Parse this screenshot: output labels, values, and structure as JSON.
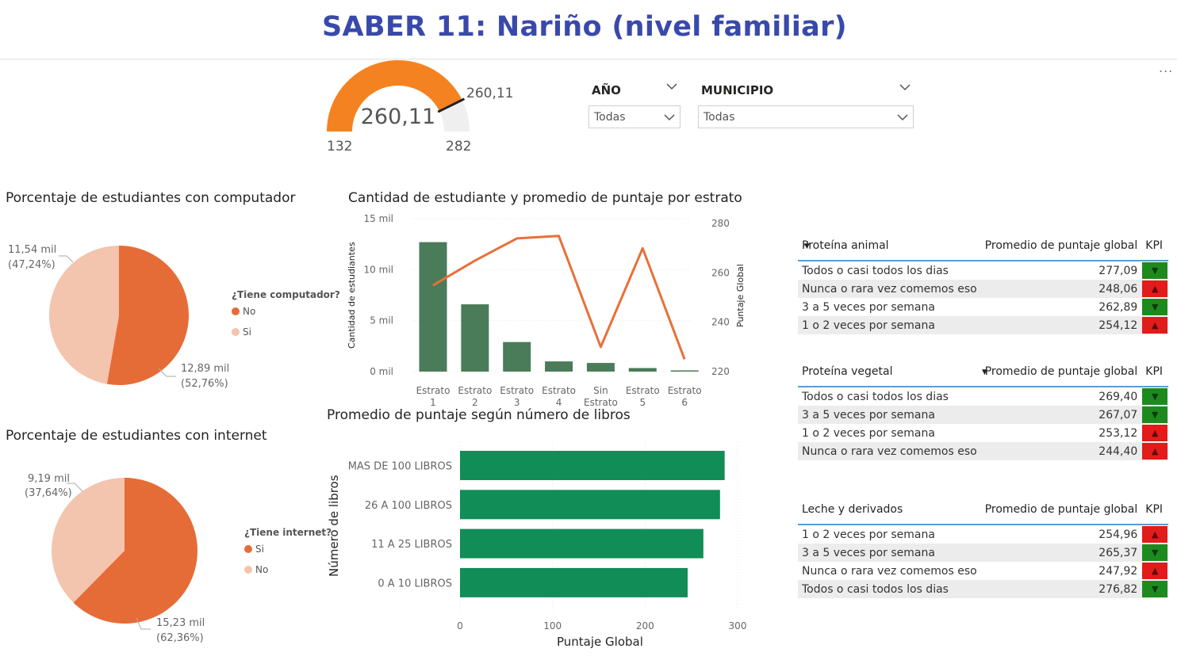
{
  "header": {
    "title": "SABER 11: Nariño (nivel familiar)",
    "more": "..."
  },
  "gauge": {
    "value": 260.11,
    "value_label": "260,11",
    "target_label": "260,11",
    "min": 132,
    "max": 282,
    "min_label": "132",
    "max_label": "282",
    "fill_color": "#f58220",
    "track_color": "#efefef"
  },
  "slicers": {
    "year": {
      "label": "AÑO",
      "value": "Todas"
    },
    "municipio": {
      "label": "MUNICIPIO",
      "value": "Todas"
    }
  },
  "pie_computer": {
    "title": "Porcentaje de estudiantes con computador",
    "legend_title": "¿Tiene computador?",
    "slices": [
      {
        "name": "No",
        "value_label": "12,89 mil",
        "pct_label": "(52,76%)",
        "pct": 52.76,
        "color": "#e66c37"
      },
      {
        "name": "Si",
        "value_label": "11,54 mil",
        "pct_label": "(47,24%)",
        "pct": 47.24,
        "color": "#f3c4ae"
      }
    ]
  },
  "pie_internet": {
    "title": "Porcentaje de estudiantes con internet",
    "legend_title": "¿Tiene internet?",
    "slices": [
      {
        "name": "Si",
        "value_label": "15,23 mil",
        "pct_label": "(62,36%)",
        "pct": 62.36,
        "color": "#e66c37"
      },
      {
        "name": "No",
        "value_label": "9,19 mil",
        "pct_label": "(37,64%)",
        "pct": 37.64,
        "color": "#f3c4ae"
      }
    ]
  },
  "combo": {
    "title": "Cantidad de estudiante y promedio de puntaje por estrato",
    "y_left_label": "Cantidad de estudiantes",
    "y_right_label": "Puntaje Global",
    "y_left_ticks": [
      "0 mil",
      "5 mil",
      "10 mil",
      "15 mil"
    ],
    "y_right_ticks": [
      "220",
      "240",
      "260",
      "280"
    ],
    "categories": [
      [
        "Estrato",
        "1"
      ],
      [
        "Estrato",
        "2"
      ],
      [
        "Estrato",
        "3"
      ],
      [
        "Estrato",
        "4"
      ],
      [
        "Sin",
        "Estrato"
      ],
      [
        "Estrato",
        "5"
      ],
      [
        "Estrato",
        "6"
      ]
    ]
  },
  "books": {
    "title": "Promedio de puntaje según número de libros",
    "y_label": "Número de libros",
    "x_label": "Puntaje Global",
    "x_ticks": [
      "0",
      "100",
      "200",
      "300"
    ]
  },
  "chart_data": [
    {
      "type": "bar+line",
      "title": "Cantidad de estudiante y promedio de puntaje por estrato",
      "categories": [
        "Estrato 1",
        "Estrato 2",
        "Estrato 3",
        "Estrato 4",
        "Sin Estrato",
        "Estrato 5",
        "Estrato 6"
      ],
      "series": [
        {
          "name": "Cantidad de estudiantes",
          "type": "bar",
          "axis": "left",
          "color": "#4a7c59",
          "values": [
            12700,
            6600,
            2900,
            1000,
            850,
            350,
            120
          ]
        },
        {
          "name": "Puntaje Global",
          "type": "line",
          "axis": "right",
          "color": "#e8703a",
          "values": [
            255,
            265,
            274,
            275,
            230,
            270,
            225
          ]
        }
      ],
      "ylim_left": [
        0,
        15000
      ],
      "ylim_right": [
        220,
        282
      ],
      "xlabel": "",
      "ylabel_left": "Cantidad de estudiantes",
      "ylabel_right": "Puntaje Global"
    },
    {
      "type": "bar",
      "orientation": "horizontal",
      "title": "Promedio de puntaje según número de libros",
      "categories": [
        "MAS DE 100 LIBROS",
        "26 A 100 LIBROS",
        "11 A 25 LIBROS",
        "0 A 10 LIBROS"
      ],
      "values": [
        286,
        281,
        263,
        246
      ],
      "color": "#118d57",
      "xlim": [
        0,
        300
      ],
      "xlabel": "Puntaje Global",
      "ylabel": "Número de libros"
    }
  ],
  "tables": [
    {
      "col1": "Proteína animal",
      "col2": "Promedio de puntaje global",
      "col3": "KPI",
      "rows": [
        {
          "label": "Todos o casi todos los dias",
          "value": "277,09",
          "kpi": "down"
        },
        {
          "label": "Nunca o rara vez comemos eso",
          "value": "248,06",
          "kpi": "up"
        },
        {
          "label": "3 a 5 veces por semana",
          "value": "262,89",
          "kpi": "down"
        },
        {
          "label": "1 o 2 veces por semana",
          "value": "254,12",
          "kpi": "up"
        }
      ]
    },
    {
      "col1": "Proteína vegetal",
      "col2": "Promedio de puntaje global",
      "col3": "KPI",
      "rows": [
        {
          "label": "Todos o casi todos los dias",
          "value": "269,40",
          "kpi": "down"
        },
        {
          "label": "3 a 5 veces por semana",
          "value": "267,07",
          "kpi": "down"
        },
        {
          "label": "1 o 2 veces por semana",
          "value": "253,12",
          "kpi": "up"
        },
        {
          "label": "Nunca o rara vez comemos eso",
          "value": "244,40",
          "kpi": "up"
        }
      ]
    },
    {
      "col1": "Leche y derivados",
      "col2": "Promedio de puntaje global",
      "col3": "KPI",
      "rows": [
        {
          "label": "1 o 2 veces por semana",
          "value": "254,96",
          "kpi": "up"
        },
        {
          "label": "3 a 5 veces por semana",
          "value": "265,37",
          "kpi": "down"
        },
        {
          "label": "Nunca o rara vez comemos eso",
          "value": "247,92",
          "kpi": "up"
        },
        {
          "label": "Todos o casi todos los dias",
          "value": "276,82",
          "kpi": "down"
        }
      ]
    }
  ]
}
